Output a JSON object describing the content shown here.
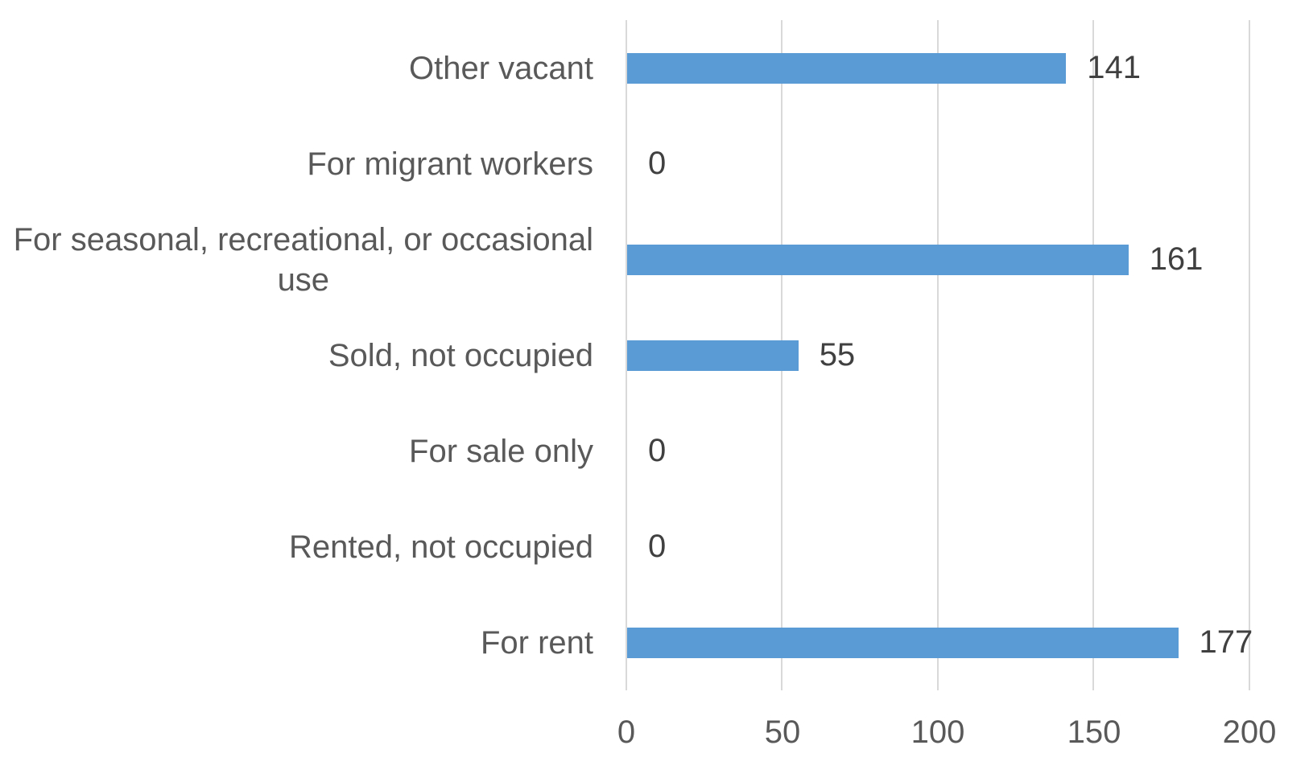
{
  "chart_data": {
    "type": "bar",
    "orientation": "horizontal",
    "title": "",
    "xlabel": "",
    "ylabel": "",
    "categories": [
      "Other vacant",
      "For migrant workers",
      "For seasonal, recreational, or occasional\nuse",
      "Sold, not occupied",
      "For sale only",
      "Rented, not occupied",
      "For rent"
    ],
    "values": [
      141,
      0,
      161,
      55,
      0,
      0,
      177
    ],
    "data_labels": [
      "141",
      "0",
      "161",
      "55",
      "0",
      "0",
      "177"
    ],
    "xlim": [
      0,
      200
    ],
    "x_ticks": [
      "0",
      "50",
      "100",
      "150",
      "200"
    ],
    "gridlines": "vertical",
    "legend_position": "none",
    "bar_color": "#5B9BD5",
    "gridline_color": "#D9D9D9",
    "category_label_color": "#595959",
    "tick_label_color": "#595959",
    "value_label_color": "#404040",
    "background_color": "#FFFFFF"
  }
}
